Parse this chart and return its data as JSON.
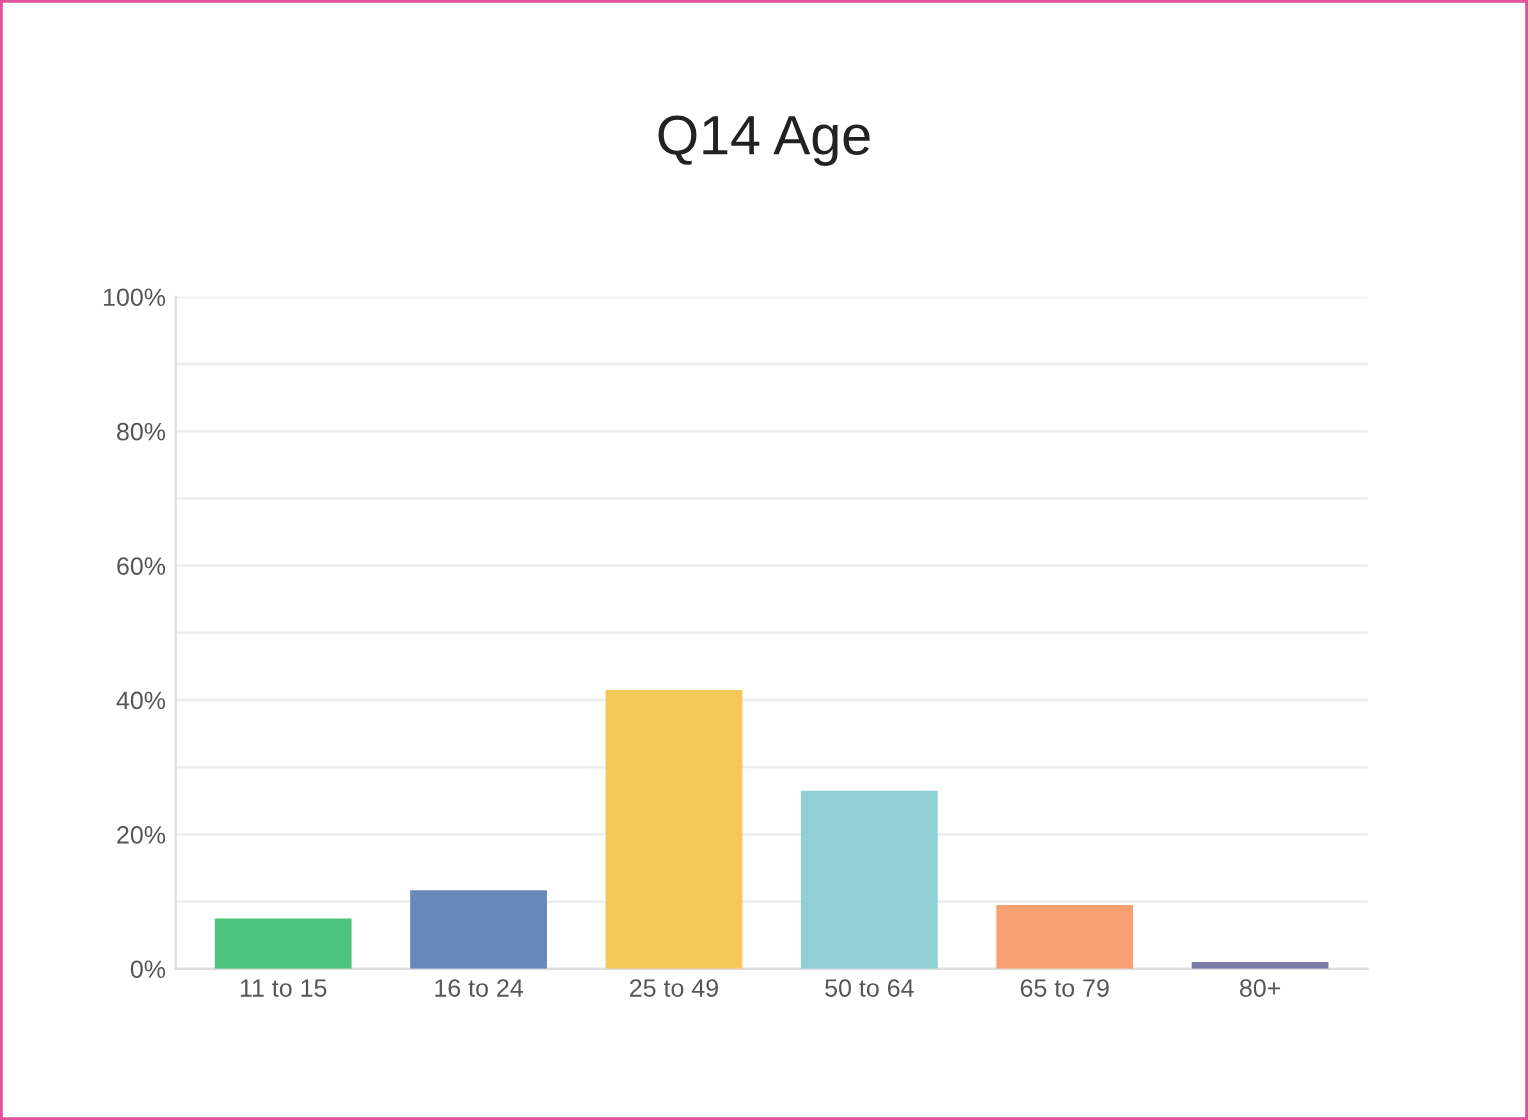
{
  "chart_data": {
    "type": "bar",
    "title": "Q14 Age",
    "categories": [
      "11 to 15",
      "16 to 24",
      "25 to 49",
      "50 to 64",
      "65 to 79",
      "80+"
    ],
    "values": [
      7.5,
      11.7,
      41.5,
      26.5,
      9.5,
      1
    ],
    "colors": [
      "#4dc47d",
      "#6688bb",
      "#f5c85a",
      "#92ced6",
      "#f7a072",
      "#7b7aa8"
    ],
    "ylim": [
      0,
      100
    ],
    "yticks": [
      {
        "value": 0,
        "label": "0%"
      },
      {
        "value": 10,
        "label": null
      },
      {
        "value": 20,
        "label": "20%"
      },
      {
        "value": 30,
        "label": null
      },
      {
        "value": 40,
        "label": "40%"
      },
      {
        "value": 50,
        "label": null
      },
      {
        "value": 60,
        "label": "60%"
      },
      {
        "value": 70,
        "label": null
      },
      {
        "value": 80,
        "label": "80%"
      },
      {
        "value": 90,
        "label": null
      },
      {
        "value": 100,
        "label": "100%"
      }
    ],
    "grid": "y"
  }
}
